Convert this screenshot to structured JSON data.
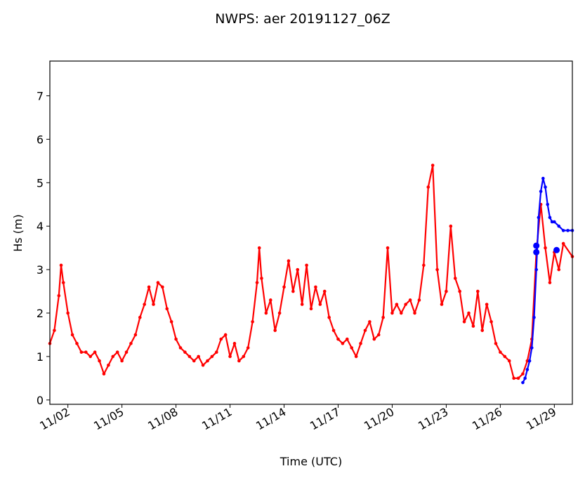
{
  "chart_data": {
    "type": "line",
    "title": "NWPS: aer 20191127_06Z",
    "xlabel": "Time (UTC)",
    "ylabel": "Hs (m)",
    "x_start": "2019-11-01",
    "x_end": "2019-11-30",
    "xlim": [
      "2019-11-01",
      "2019-11-30"
    ],
    "ylim": [
      -0.1,
      7.8
    ],
    "xticks": [
      {
        "label": "11/02",
        "date": "2019-11-02"
      },
      {
        "label": "11/05",
        "date": "2019-11-05"
      },
      {
        "label": "11/08",
        "date": "2019-11-08"
      },
      {
        "label": "11/11",
        "date": "2019-11-11"
      },
      {
        "label": "11/14",
        "date": "2019-11-14"
      },
      {
        "label": "11/17",
        "date": "2019-11-17"
      },
      {
        "label": "11/20",
        "date": "2019-11-20"
      },
      {
        "label": "11/23",
        "date": "2019-11-23"
      },
      {
        "label": "11/26",
        "date": "2019-11-26"
      },
      {
        "label": "11/29",
        "date": "2019-11-29"
      }
    ],
    "yticks": [
      0,
      1,
      2,
      3,
      4,
      5,
      6,
      7
    ],
    "grid": false,
    "series": [
      {
        "color": "#ff0000",
        "points": [
          [
            "2019-11-01",
            1.3
          ],
          [
            "2019-11-01T06",
            1.6
          ],
          [
            "2019-11-01T12",
            2.4
          ],
          [
            "2019-11-01T15",
            3.1
          ],
          [
            "2019-11-01T18",
            2.7
          ],
          [
            "2019-11-02",
            2.0
          ],
          [
            "2019-11-02T06",
            1.5
          ],
          [
            "2019-11-02T12",
            1.3
          ],
          [
            "2019-11-02T18",
            1.1
          ],
          [
            "2019-11-03",
            1.1
          ],
          [
            "2019-11-03T06",
            1.0
          ],
          [
            "2019-11-03T12",
            1.1
          ],
          [
            "2019-11-03T18",
            0.9
          ],
          [
            "2019-11-04",
            0.6
          ],
          [
            "2019-11-04T06",
            0.8
          ],
          [
            "2019-11-04T12",
            1.0
          ],
          [
            "2019-11-04T18",
            1.1
          ],
          [
            "2019-11-05",
            0.9
          ],
          [
            "2019-11-05T06",
            1.1
          ],
          [
            "2019-11-05T12",
            1.3
          ],
          [
            "2019-11-05T18",
            1.5
          ],
          [
            "2019-11-06",
            1.9
          ],
          [
            "2019-11-06T06",
            2.2
          ],
          [
            "2019-11-06T12",
            2.6
          ],
          [
            "2019-11-06T18",
            2.2
          ],
          [
            "2019-11-07",
            2.7
          ],
          [
            "2019-11-07T06",
            2.6
          ],
          [
            "2019-11-07T12",
            2.1
          ],
          [
            "2019-11-07T18",
            1.8
          ],
          [
            "2019-11-08",
            1.4
          ],
          [
            "2019-11-08T06",
            1.2
          ],
          [
            "2019-11-08T12",
            1.1
          ],
          [
            "2019-11-08T18",
            1.0
          ],
          [
            "2019-11-09",
            0.9
          ],
          [
            "2019-11-09T06",
            1.0
          ],
          [
            "2019-11-09T12",
            0.8
          ],
          [
            "2019-11-09T18",
            0.9
          ],
          [
            "2019-11-10",
            1.0
          ],
          [
            "2019-11-10T06",
            1.1
          ],
          [
            "2019-11-10T12",
            1.4
          ],
          [
            "2019-11-10T18",
            1.5
          ],
          [
            "2019-11-11",
            1.0
          ],
          [
            "2019-11-11T06",
            1.3
          ],
          [
            "2019-11-11T12",
            0.9
          ],
          [
            "2019-11-11T18",
            1.0
          ],
          [
            "2019-11-12",
            1.2
          ],
          [
            "2019-11-12T06",
            1.8
          ],
          [
            "2019-11-12T12",
            2.7
          ],
          [
            "2019-11-12T15",
            3.5
          ],
          [
            "2019-11-12T18",
            2.8
          ],
          [
            "2019-11-13",
            2.0
          ],
          [
            "2019-11-13T06",
            2.3
          ],
          [
            "2019-11-13T12",
            1.6
          ],
          [
            "2019-11-13T18",
            2.0
          ],
          [
            "2019-11-14",
            2.6
          ],
          [
            "2019-11-14T06",
            3.2
          ],
          [
            "2019-11-14T12",
            2.5
          ],
          [
            "2019-11-14T18",
            3.0
          ],
          [
            "2019-11-15",
            2.2
          ],
          [
            "2019-11-15T06",
            3.1
          ],
          [
            "2019-11-15T12",
            2.1
          ],
          [
            "2019-11-15T18",
            2.6
          ],
          [
            "2019-11-16",
            2.2
          ],
          [
            "2019-11-16T06",
            2.5
          ],
          [
            "2019-11-16T12",
            1.9
          ],
          [
            "2019-11-16T18",
            1.6
          ],
          [
            "2019-11-17",
            1.4
          ],
          [
            "2019-11-17T06",
            1.3
          ],
          [
            "2019-11-17T12",
            1.4
          ],
          [
            "2019-11-17T18",
            1.2
          ],
          [
            "2019-11-18",
            1.0
          ],
          [
            "2019-11-18T06",
            1.3
          ],
          [
            "2019-11-18T12",
            1.6
          ],
          [
            "2019-11-18T18",
            1.8
          ],
          [
            "2019-11-19",
            1.4
          ],
          [
            "2019-11-19T06",
            1.5
          ],
          [
            "2019-11-19T12",
            1.9
          ],
          [
            "2019-11-19T18",
            3.5
          ],
          [
            "2019-11-20",
            2.0
          ],
          [
            "2019-11-20T06",
            2.2
          ],
          [
            "2019-11-20T12",
            2.0
          ],
          [
            "2019-11-20T18",
            2.2
          ],
          [
            "2019-11-21",
            2.3
          ],
          [
            "2019-11-21T06",
            2.0
          ],
          [
            "2019-11-21T12",
            2.3
          ],
          [
            "2019-11-21T18",
            3.1
          ],
          [
            "2019-11-22",
            4.9
          ],
          [
            "2019-11-22T06",
            5.4
          ],
          [
            "2019-11-22T12",
            3.0
          ],
          [
            "2019-11-22T18",
            2.2
          ],
          [
            "2019-11-23",
            2.5
          ],
          [
            "2019-11-23T06",
            4.0
          ],
          [
            "2019-11-23T12",
            2.8
          ],
          [
            "2019-11-23T18",
            2.5
          ],
          [
            "2019-11-24",
            1.8
          ],
          [
            "2019-11-24T06",
            2.0
          ],
          [
            "2019-11-24T12",
            1.7
          ],
          [
            "2019-11-24T18",
            2.5
          ],
          [
            "2019-11-25",
            1.6
          ],
          [
            "2019-11-25T06",
            2.2
          ],
          [
            "2019-11-25T12",
            1.8
          ],
          [
            "2019-11-25T18",
            1.3
          ],
          [
            "2019-11-26",
            1.1
          ],
          [
            "2019-11-26T06",
            1.0
          ],
          [
            "2019-11-26T12",
            0.9
          ],
          [
            "2019-11-26T18",
            0.5
          ],
          [
            "2019-11-27",
            0.5
          ],
          [
            "2019-11-27T06",
            0.6
          ],
          [
            "2019-11-27T12",
            0.9
          ],
          [
            "2019-11-27T18",
            1.4
          ],
          [
            "2019-11-28",
            3.4
          ],
          [
            "2019-11-28T06",
            4.5
          ],
          [
            "2019-11-28T12",
            3.5
          ],
          [
            "2019-11-28T18",
            2.7
          ],
          [
            "2019-11-29",
            3.4
          ],
          [
            "2019-11-29T06",
            3.0
          ],
          [
            "2019-11-29T12",
            3.6
          ],
          [
            "2019-11-30",
            3.3
          ]
        ]
      },
      {
        "color": "#0000ff",
        "points": [
          [
            "2019-11-27T06",
            0.4
          ],
          [
            "2019-11-27T09",
            0.5
          ],
          [
            "2019-11-27T12",
            0.7
          ],
          [
            "2019-11-27T15",
            0.9
          ],
          [
            "2019-11-27T18",
            1.2
          ],
          [
            "2019-11-27T21",
            1.9
          ],
          [
            "2019-11-28",
            3.0
          ],
          [
            "2019-11-28T03",
            4.2
          ],
          [
            "2019-11-28T06",
            4.8
          ],
          [
            "2019-11-28T09",
            5.1
          ],
          [
            "2019-11-28T12",
            4.9
          ],
          [
            "2019-11-28T15",
            4.5
          ],
          [
            "2019-11-28T18",
            4.2
          ],
          [
            "2019-11-28T21",
            4.1
          ],
          [
            "2019-11-29",
            4.1
          ],
          [
            "2019-11-29T06",
            4.0
          ],
          [
            "2019-11-29T12",
            3.9
          ],
          [
            "2019-11-29T18",
            3.9
          ],
          [
            "2019-11-30",
            3.9
          ]
        ]
      }
    ],
    "highlight_points": [
      {
        "date": "2019-11-28",
        "value": 3.55,
        "color": "#0000ff"
      },
      {
        "date": "2019-11-28",
        "value": 3.4,
        "color": "#0000ff"
      },
      {
        "date": "2019-11-29T03",
        "value": 3.45,
        "color": "#0000ff"
      }
    ]
  }
}
